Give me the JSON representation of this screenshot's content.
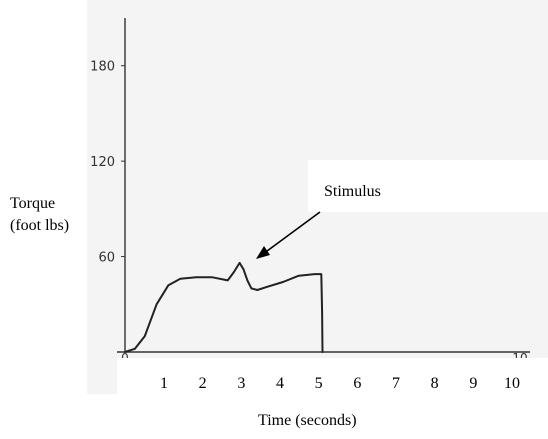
{
  "chart_data": {
    "type": "line",
    "ylabel_lines": [
      "Torque",
      "(foot lbs)"
    ],
    "xlabel": "Time (seconds)",
    "annotation": "Stimulus",
    "ylim": [
      0,
      210
    ],
    "xlim": [
      0,
      10
    ],
    "y_ticks": [
      "60",
      "120",
      "180"
    ],
    "y_tick_values": [
      60,
      120,
      180
    ],
    "handwritten_x_ticks": [
      "0",
      "10"
    ],
    "handwritten_x_tick_values": [
      0,
      10
    ],
    "x_ticks": [
      "1",
      "2",
      "3",
      "4",
      "5",
      "6",
      "7",
      "8",
      "9",
      "10"
    ],
    "x_tick_values": [
      1,
      2,
      3,
      4,
      5,
      6,
      7,
      8,
      9,
      10
    ],
    "grid": false,
    "x": [
      0,
      0.25,
      0.5,
      0.8,
      1.1,
      1.4,
      1.8,
      2.2,
      2.6,
      2.75,
      2.9,
      3.0,
      3.1,
      3.2,
      3.35,
      3.6,
      4.0,
      4.4,
      4.8,
      4.97,
      4.99,
      5.0
    ],
    "y": [
      0,
      2,
      10,
      30,
      42,
      46,
      47,
      47,
      45,
      50,
      56,
      52,
      45,
      40,
      39,
      41,
      44,
      48,
      49,
      49,
      25,
      0
    ],
    "stimulus_point": [
      2.95,
      55
    ]
  }
}
